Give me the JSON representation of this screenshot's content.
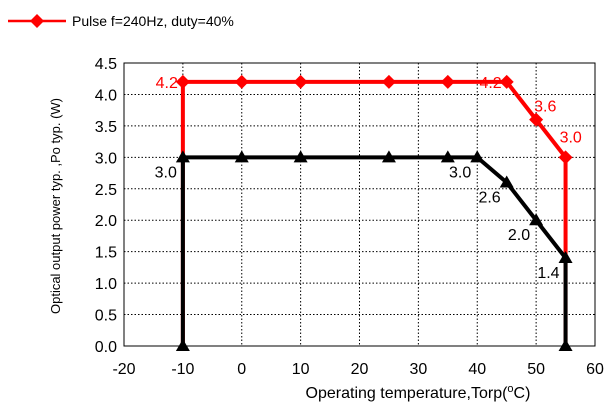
{
  "chart_data": {
    "type": "line",
    "title": "",
    "xlabel": "Operating temperature,Torp(",
    "xlabel_sup": "o",
    "xlabel_end": "C)",
    "ylabel": "Optical output power typ. ,Po typ. (W)",
    "xlim": [
      -20,
      60
    ],
    "ylim": [
      0,
      4.5
    ],
    "xticks": [
      -20,
      -10,
      0,
      10,
      20,
      30,
      40,
      50,
      60
    ],
    "yticks": [
      "0.0",
      "0.5",
      "1.0",
      "1.5",
      "2.0",
      "2.5",
      "3.0",
      "3.5",
      "4.0",
      "4.5"
    ],
    "grid": true,
    "legend_position": "top-left",
    "series": [
      {
        "name": "Pulse f=240Hz, duty=40%",
        "color": "#ff0000",
        "marker": "diamond",
        "points": [
          [
            -10,
            4.2
          ],
          [
            0,
            4.2
          ],
          [
            10,
            4.2
          ],
          [
            25,
            4.2
          ],
          [
            35,
            4.2
          ],
          [
            45,
            4.2
          ],
          [
            50,
            3.6
          ],
          [
            55,
            3.0
          ]
        ],
        "closed_outline": [
          [
            -10,
            0
          ],
          [
            -10,
            4.2
          ],
          [
            45,
            4.2
          ],
          [
            50,
            3.6
          ],
          [
            55,
            3.0
          ],
          [
            55,
            0
          ]
        ]
      },
      {
        "name": "",
        "color": "#000000",
        "marker": "triangle",
        "points": [
          [
            -10,
            0
          ],
          [
            -10,
            3.0
          ],
          [
            0,
            3.0
          ],
          [
            10,
            3.0
          ],
          [
            25,
            3.0
          ],
          [
            35,
            3.0
          ],
          [
            40,
            3.0
          ],
          [
            45,
            2.6
          ],
          [
            50,
            2.0
          ],
          [
            55,
            1.4
          ],
          [
            55,
            0
          ]
        ],
        "closed_outline": [
          [
            -10,
            0
          ],
          [
            -10,
            3.0
          ],
          [
            40,
            3.0
          ],
          [
            45,
            2.6
          ],
          [
            50,
            2.0
          ],
          [
            55,
            1.4
          ],
          [
            55,
            0
          ]
        ]
      }
    ],
    "annotations": [
      {
        "text": "4.2",
        "x": -10,
        "y": 4.2,
        "color": "#ff0000",
        "anchor": "left"
      },
      {
        "text": "4.2",
        "x": 45,
        "y": 4.2,
        "color": "#ff0000",
        "anchor": "right"
      },
      {
        "text": "3.6",
        "x": 50,
        "y": 3.6,
        "color": "#ff0000",
        "anchor": "right-up"
      },
      {
        "text": "3.0",
        "x": 55,
        "y": 3.0,
        "color": "#ff0000",
        "anchor": "up"
      },
      {
        "text": "3.0",
        "x": -10,
        "y": 3.0,
        "color": "#000000",
        "anchor": "left-down"
      },
      {
        "text": "3.0",
        "x": 40,
        "y": 3.0,
        "color": "#000000",
        "anchor": "left-down"
      },
      {
        "text": "2.6",
        "x": 45,
        "y": 2.6,
        "color": "#000000",
        "anchor": "left-down"
      },
      {
        "text": "2.0",
        "x": 50,
        "y": 2.0,
        "color": "#000000",
        "anchor": "left-down"
      },
      {
        "text": "1.4",
        "x": 55,
        "y": 1.4,
        "color": "#000000",
        "anchor": "left-down"
      }
    ]
  }
}
